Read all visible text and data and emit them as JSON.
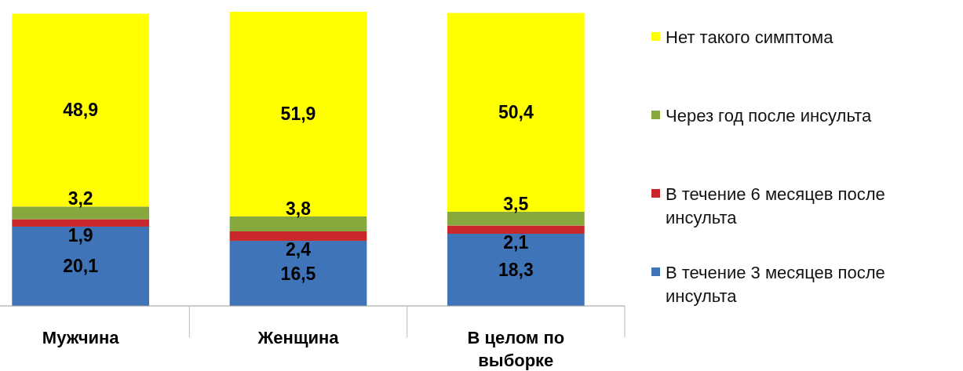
{
  "chart_data": {
    "type": "bar",
    "stacked": true,
    "legend": "right",
    "categories": [
      "Мужчина",
      "Женщина",
      "В целом по выборке"
    ],
    "series": [
      {
        "name": "В течение 3 месяцев после инсульта",
        "color": "#3f74b8",
        "values": [
          20.1,
          16.5,
          18.3
        ],
        "value_labels": [
          "20,1",
          "16,5",
          "18,3"
        ]
      },
      {
        "name": "В течение 6 месяцев после инсульта",
        "color": "#c8282c",
        "values": [
          1.9,
          2.4,
          2.1
        ],
        "value_labels": [
          "1,9",
          "2,4",
          "2,1"
        ]
      },
      {
        "name": "Через год после инсульта",
        "color": "#86a83c",
        "values": [
          3.2,
          3.8,
          3.5
        ],
        "value_labels": [
          "3,2",
          "3,8",
          "3,5"
        ]
      },
      {
        "name": "Нет такого симптома",
        "color": "#ffff00",
        "values": [
          48.9,
          51.9,
          50.4
        ],
        "value_labels": [
          "48,9",
          "51,9",
          "50,4"
        ]
      }
    ]
  }
}
